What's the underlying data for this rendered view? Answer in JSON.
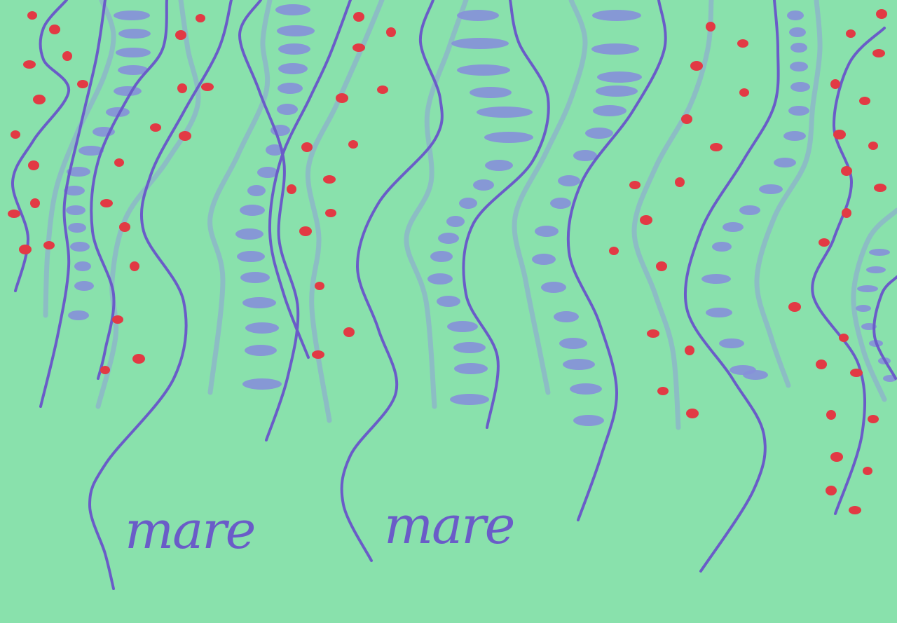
{
  "artwork": {
    "colors": {
      "background": "#89e1ac",
      "dark_line": "#6a5cc8",
      "light_line": "#8cbdc4",
      "dash": "#8690d9",
      "dot": "#e23a44"
    },
    "words": [
      "mare",
      "mare"
    ]
  }
}
